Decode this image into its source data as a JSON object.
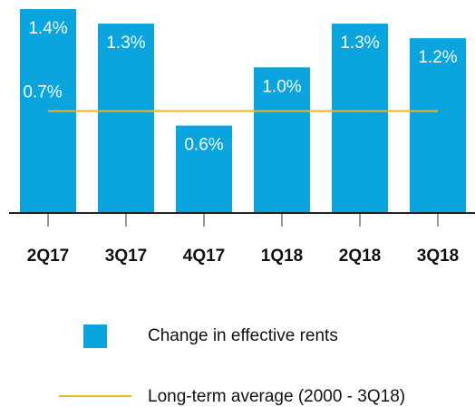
{
  "chart_data": {
    "type": "bar",
    "categories": [
      "2Q17",
      "3Q17",
      "4Q17",
      "1Q18",
      "2Q18",
      "3Q18"
    ],
    "series": [
      {
        "name": "Change in effective rents",
        "color": "#0aa5df",
        "values": [
          1.4,
          1.3,
          0.6,
          1.0,
          1.3,
          1.2
        ],
        "value_labels": [
          "1.4%",
          "1.3%",
          "0.6%",
          "1.0%",
          "1.3%",
          "1.2%"
        ]
      }
    ],
    "average": {
      "name": "Long-term average (2000 - 3Q18)",
      "value": 0.7,
      "label": "0.7%",
      "color": "#f0b429"
    },
    "ylim": [
      0,
      1.4
    ]
  }
}
